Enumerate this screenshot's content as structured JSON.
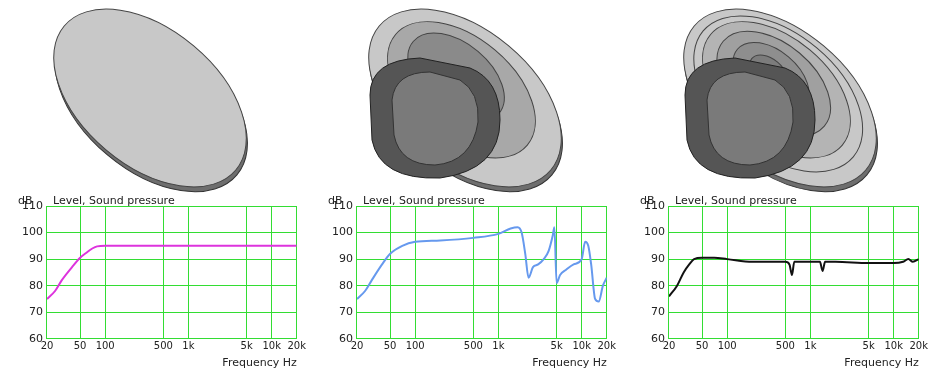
{
  "chart_data": [
    {
      "type": "line",
      "title": "Level, Sound pressure",
      "ylabel": "dB",
      "xlabel": "Frequency Hz",
      "color": "#dd33dd",
      "log": "x",
      "grid": true,
      "xlim": [
        20,
        20000
      ],
      "ylim": [
        60,
        110
      ],
      "xticks": [
        20,
        50,
        100,
        500,
        {
          "value": 1000,
          "label": "1k"
        },
        {
          "value": 5000,
          "label": "5k"
        },
        {
          "value": 10000,
          "label": "10k"
        },
        {
          "value": 20000,
          "label": "20k"
        }
      ],
      "yticks": [
        60,
        70,
        80,
        90,
        100,
        110
      ],
      "x": [
        20,
        25,
        30,
        40,
        50,
        60,
        70,
        80,
        100,
        1000,
        20000
      ],
      "values": [
        75,
        78,
        82,
        87,
        90.5,
        92.5,
        94,
        94.8,
        95,
        95,
        95
      ]
    },
    {
      "type": "line",
      "title": "Level, Sound pressure",
      "ylabel": "dB",
      "xlabel": "Frequency Hz",
      "color": "#6699ee",
      "log": "x",
      "grid": true,
      "xlim": [
        20,
        20000
      ],
      "ylim": [
        60,
        110
      ],
      "xticks": [
        20,
        50,
        100,
        500,
        {
          "value": 1000,
          "label": "1k"
        },
        {
          "value": 5000,
          "label": "5k"
        },
        {
          "value": 10000,
          "label": "10k"
        },
        {
          "value": 20000,
          "label": "20k"
        }
      ],
      "yticks": [
        60,
        70,
        80,
        90,
        100,
        110
      ],
      "x": [
        20,
        25,
        30,
        40,
        50,
        70,
        100,
        200,
        500,
        1000,
        1400,
        1700,
        1900,
        2100,
        2300,
        2600,
        3000,
        3500,
        4000,
        4500,
        4700,
        5000,
        5500,
        6500,
        8000,
        10000,
        11000,
        12000,
        13000,
        14500,
        16000,
        18000,
        20000
      ],
      "values": [
        75,
        78,
        82,
        88,
        92,
        95,
        96.5,
        97,
        98,
        99.5,
        101.5,
        102,
        100,
        92,
        83,
        87,
        88,
        90,
        93,
        99,
        102,
        81,
        84,
        86,
        88,
        90,
        96.5,
        95,
        88,
        75,
        74,
        80,
        83
      ]
    },
    {
      "type": "line",
      "title": "Level, Sound pressure",
      "ylabel": "dB",
      "xlabel": "Frequency Hz",
      "color": "#111111",
      "log": "x",
      "grid": true,
      "xlim": [
        20,
        20000
      ],
      "ylim": [
        60,
        110
      ],
      "xticks": [
        20,
        50,
        100,
        500,
        {
          "value": 1000,
          "label": "1k"
        },
        {
          "value": 5000,
          "label": "5k"
        },
        {
          "value": 10000,
          "label": "10k"
        },
        {
          "value": 20000,
          "label": "20k"
        }
      ],
      "yticks": [
        60,
        70,
        80,
        90,
        100,
        110
      ],
      "x": [
        20,
        25,
        30,
        35,
        40,
        50,
        70,
        100,
        200,
        500,
        560,
        600,
        640,
        700,
        1000,
        1300,
        1400,
        1500,
        2000,
        5000,
        10000,
        13000,
        15000,
        17000,
        20000
      ],
      "values": [
        76,
        80,
        85,
        88,
        90,
        90.5,
        90.5,
        90,
        89,
        89,
        88,
        84,
        89,
        89,
        89,
        89,
        85.5,
        89,
        89,
        88.5,
        88.5,
        89,
        90,
        89,
        90
      ]
    }
  ]
}
